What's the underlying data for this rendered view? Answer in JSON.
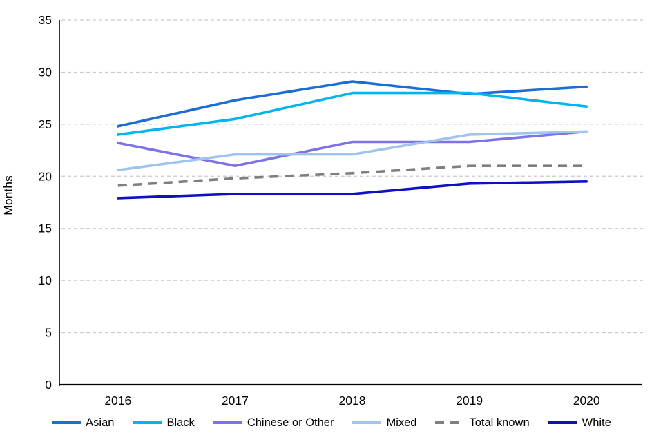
{
  "chart_data": {
    "type": "line",
    "title": "",
    "xlabel": "",
    "ylabel": "Months",
    "ylim": [
      0,
      35
    ],
    "yticks": [
      0,
      5,
      10,
      15,
      20,
      25,
      30,
      35
    ],
    "grid": "horizontal-dashed",
    "legend_position": "bottom",
    "categories": [
      "2016",
      "2017",
      "2018",
      "2019",
      "2020"
    ],
    "series": [
      {
        "name": "Asian",
        "color": "#1b6ed8",
        "dashed": false,
        "values": [
          24.8,
          27.3,
          29.1,
          27.9,
          28.6
        ]
      },
      {
        "name": "Black",
        "color": "#00b4f0",
        "dashed": false,
        "values": [
          24.0,
          25.5,
          28.0,
          28.0,
          26.7
        ]
      },
      {
        "name": "Chinese or Other",
        "color": "#7d73e6",
        "dashed": false,
        "values": [
          23.2,
          21.0,
          23.3,
          23.3,
          24.3
        ]
      },
      {
        "name": "Mixed",
        "color": "#9fc5ee",
        "dashed": false,
        "values": [
          20.6,
          22.1,
          22.1,
          24.0,
          24.3
        ]
      },
      {
        "name": "Total known",
        "color": "#7f7f7f",
        "dashed": true,
        "values": [
          19.1,
          19.8,
          20.3,
          21.0,
          21.0
        ]
      },
      {
        "name": "White",
        "color": "#0f10c4",
        "dashed": false,
        "values": [
          17.9,
          18.3,
          18.3,
          19.3,
          19.5
        ]
      }
    ],
    "colors": {
      "gridline": "#c9c9c9",
      "axis": "#000000",
      "tick_text": "#000000"
    }
  }
}
